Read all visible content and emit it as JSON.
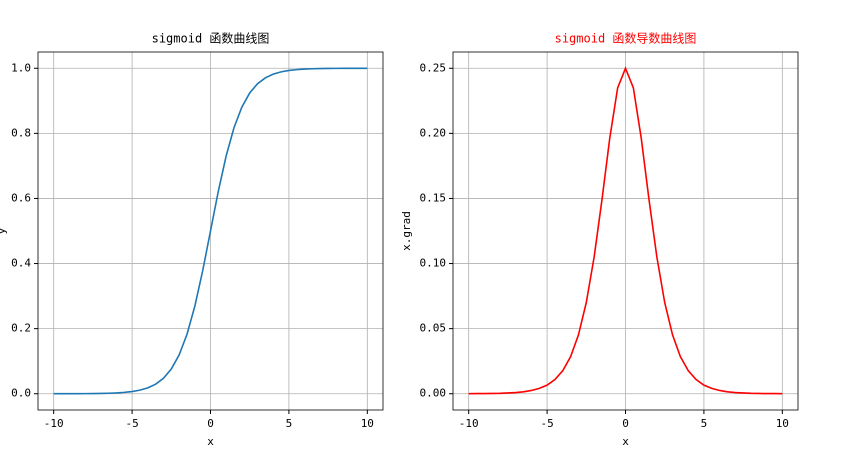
{
  "chart_data": [
    {
      "type": "line",
      "title": "sigmoid 函数曲线图",
      "title_color": "#000000",
      "xlabel": "x",
      "ylabel": "y",
      "x": [
        -10,
        -9.5,
        -9,
        -8.5,
        -8,
        -7.5,
        -7,
        -6.5,
        -6,
        -5.5,
        -5,
        -4.5,
        -4,
        -3.5,
        -3,
        -2.5,
        -2,
        -1.5,
        -1,
        -0.5,
        0,
        0.5,
        1,
        1.5,
        2,
        2.5,
        3,
        3.5,
        4,
        4.5,
        5,
        5.5,
        6,
        6.5,
        7,
        7.5,
        8,
        8.5,
        9,
        9.5,
        10
      ],
      "series": [
        {
          "name": "sigmoid",
          "color": "#1f77b4",
          "values": [
            0,
            0.0001,
            0.0001,
            0.0002,
            0.0003,
            0.0006,
            0.0009,
            0.0015,
            0.0025,
            0.0041,
            0.0067,
            0.011,
            0.018,
            0.0293,
            0.0474,
            0.0759,
            0.1192,
            0.1824,
            0.2689,
            0.3775,
            0.5,
            0.6225,
            0.7311,
            0.8176,
            0.8808,
            0.9241,
            0.9526,
            0.9707,
            0.982,
            0.989,
            0.9933,
            0.9959,
            0.9975,
            0.9985,
            0.9991,
            0.9994,
            0.9997,
            0.9998,
            0.9999,
            0.9999,
            1
          ]
        }
      ],
      "xlim": [
        -11,
        11
      ],
      "xticks": [
        -10,
        -5,
        0,
        5,
        10
      ],
      "ylim": [
        -0.05,
        1.05
      ],
      "yticks": [
        {
          "value": 0,
          "label": "0.0"
        },
        0.2,
        0.4,
        0.6,
        0.8,
        {
          "value": 1,
          "label": "1.0"
        }
      ],
      "grid": true
    },
    {
      "type": "line",
      "title": "sigmoid 函数导数曲线图",
      "title_color": "#ff0000",
      "xlabel": "x",
      "ylabel": "x.grad",
      "x": [
        -10,
        -9.5,
        -9,
        -8.5,
        -8,
        -7.5,
        -7,
        -6.5,
        -6,
        -5.5,
        -5,
        -4.5,
        -4,
        -3.5,
        -3,
        -2.5,
        -2,
        -1.5,
        -1,
        -0.5,
        0,
        0.5,
        1,
        1.5,
        2,
        2.5,
        3,
        3.5,
        4,
        4.5,
        5,
        5.5,
        6,
        6.5,
        7,
        7.5,
        8,
        8.5,
        9,
        9.5,
        10
      ],
      "series": [
        {
          "name": "x.grad",
          "color": "#ff0000",
          "values": [
            0,
            0.0001,
            0.0001,
            0.0002,
            0.0003,
            0.0006,
            0.0009,
            0.0015,
            0.0025,
            0.0041,
            0.0066,
            0.0109,
            0.0177,
            0.0285,
            0.0452,
            0.0701,
            0.105,
            0.1491,
            0.1966,
            0.235,
            0.25,
            0.235,
            0.1966,
            0.1491,
            0.105,
            0.0701,
            0.0452,
            0.0285,
            0.0177,
            0.0109,
            0.0066,
            0.0041,
            0.0025,
            0.0015,
            0.0009,
            0.0006,
            0.0003,
            0.0002,
            0.0001,
            0.0001,
            0
          ]
        }
      ],
      "xlim": [
        -11,
        11
      ],
      "xticks": [
        -10,
        -5,
        0,
        5,
        10
      ],
      "ylim": [
        -0.0125,
        0.2625
      ],
      "yticks": [
        {
          "value": 0,
          "label": "0.00"
        },
        0.05,
        {
          "value": 0.1,
          "label": "0.10"
        },
        0.15,
        {
          "value": 0.2,
          "label": "0.20"
        },
        0.25
      ],
      "grid": true
    }
  ]
}
